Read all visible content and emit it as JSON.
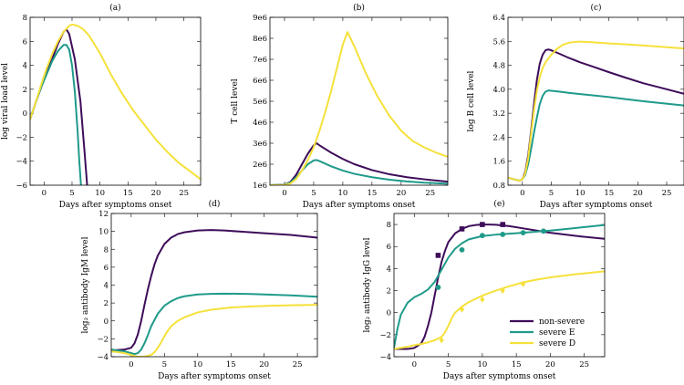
{
  "colors": {
    "non_severe": "#3e0c5a",
    "severe_E": "#1f9a8a",
    "severe_D": "#f5e13a"
  },
  "chart_data": [
    {
      "id": "a",
      "type": "line",
      "title": "(a)",
      "xlabel": "Days after symptoms onset",
      "ylabel": "log viral load level",
      "xlim": [
        -2.5,
        28
      ],
      "ylim": [
        -6,
        8
      ],
      "xticks": [
        0,
        5,
        10,
        15,
        20,
        25
      ],
      "yticks": [
        -6,
        -4,
        -2,
        0,
        2,
        4,
        6,
        8
      ],
      "series": [
        {
          "name": "non-severe",
          "color_key": "non_severe",
          "x": [
            -2.5,
            -1.5,
            -0.5,
            0.5,
            1.5,
            2.5,
            3.5,
            4,
            4.5,
            5.5,
            6.5,
            7.2,
            7.7
          ],
          "y": [
            -0.5,
            0.9,
            2.2,
            3.4,
            4.6,
            5.8,
            6.8,
            7,
            6.6,
            4.5,
            1,
            -3,
            -6
          ]
        },
        {
          "name": "severe E",
          "color_key": "severe_E",
          "x": [
            -2.5,
            -1.5,
            -0.5,
            0.5,
            1.5,
            2.5,
            3.5,
            4,
            4.5,
            5,
            5.5,
            6,
            6.3,
            6.6
          ],
          "y": [
            -0.5,
            0.9,
            2.2,
            3.3,
            4.4,
            5.2,
            5.7,
            5.7,
            5.3,
            4,
            1.8,
            -1.5,
            -4,
            -6
          ]
        },
        {
          "name": "severe D",
          "color_key": "severe_D",
          "x": [
            -2.5,
            -1.5,
            -0.5,
            0.5,
            1.5,
            2.5,
            3.5,
            4.5,
            5,
            6,
            7,
            8,
            10,
            12,
            14,
            16,
            18,
            20,
            22,
            24,
            26,
            28
          ],
          "y": [
            -0.5,
            0.9,
            2.4,
            3.8,
            5,
            6,
            6.8,
            7.3,
            7.4,
            7.3,
            7,
            6.5,
            5,
            3.2,
            1.6,
            0.2,
            -1,
            -2.2,
            -3.2,
            -4.1,
            -4.8,
            -5.5
          ]
        }
      ]
    },
    {
      "id": "b",
      "type": "line",
      "title": "(b)",
      "xlabel": "Days after symptoms onset",
      "ylabel": "T cell level",
      "xlim": [
        -2.5,
        28
      ],
      "ylim": [
        1000000,
        9000000
      ],
      "xticks": [
        0,
        5,
        10,
        15,
        20,
        25
      ],
      "yticks": [
        1000000,
        2000000,
        3000000,
        4000000,
        5000000,
        6000000,
        7000000,
        8000000,
        9000000
      ],
      "ytick_labels": [
        "1e6",
        "2e6",
        "3e6",
        "4e6",
        "5e6",
        "6e6",
        "7e6",
        "8e6",
        "9e6"
      ],
      "series": [
        {
          "name": "non-severe",
          "color_key": "non_severe",
          "x": [
            -2.5,
            0,
            1,
            2,
            3,
            4,
            5,
            5.5,
            6,
            8,
            10,
            12,
            15,
            18,
            21,
            24,
            28
          ],
          "y": [
            1000000,
            1020000,
            1150000,
            1500000,
            2000000,
            2500000,
            2900000,
            3000000,
            2900000,
            2550000,
            2250000,
            2000000,
            1720000,
            1520000,
            1380000,
            1280000,
            1170000
          ]
        },
        {
          "name": "severe E",
          "color_key": "severe_E",
          "x": [
            -2.5,
            0,
            1,
            2,
            3,
            4,
            5,
            5.5,
            6,
            8,
            10,
            12,
            15,
            18,
            21,
            24,
            28
          ],
          "y": [
            1000000,
            1020000,
            1120000,
            1380000,
            1700000,
            2000000,
            2180000,
            2200000,
            2150000,
            1900000,
            1700000,
            1540000,
            1380000,
            1260000,
            1180000,
            1120000,
            1070000
          ]
        },
        {
          "name": "severe D",
          "color_key": "severe_D",
          "x": [
            -2.5,
            0,
            1,
            2,
            3,
            4,
            5,
            6,
            7,
            8,
            9,
            10,
            10.8,
            12,
            14,
            16,
            18,
            20,
            22,
            24,
            26,
            28
          ],
          "y": [
            1000000,
            1010000,
            1080000,
            1300000,
            1700000,
            2200000,
            2800000,
            3600000,
            4500000,
            5500000,
            6600000,
            7700000,
            8300000,
            7600000,
            6300000,
            5200000,
            4300000,
            3600000,
            3100000,
            2800000,
            2550000,
            2350000
          ]
        }
      ]
    },
    {
      "id": "c",
      "type": "line",
      "title": "(c)",
      "xlabel": "Days after symptoms onset",
      "ylabel": "log B cell level",
      "xlim": [
        -2.5,
        28
      ],
      "ylim": [
        0.8,
        6.4
      ],
      "xticks": [
        0,
        5,
        10,
        15,
        20,
        25
      ],
      "yticks": [
        0.8,
        1.6,
        2.4,
        3.2,
        4.0,
        4.8,
        5.6,
        6.4
      ],
      "ytick_labels": [
        "0.8",
        "1.6",
        "2.4",
        "3.2",
        "4.0",
        "4.8",
        "5.6",
        "6.4"
      ],
      "series": [
        {
          "name": "non-severe",
          "color_key": "non_severe",
          "x": [
            -2.5,
            -1.5,
            -0.5,
            0,
            0.5,
            1,
            1.5,
            2,
            2.5,
            3,
            3.5,
            4,
            4.5,
            5,
            6,
            8,
            10,
            12,
            15,
            18,
            21,
            24,
            28
          ],
          "y": [
            1.05,
            1,
            0.95,
            1,
            1.25,
            1.8,
            2.6,
            3.5,
            4.3,
            4.85,
            5.15,
            5.3,
            5.33,
            5.3,
            5.22,
            5.05,
            4.9,
            4.77,
            4.57,
            4.38,
            4.2,
            4.05,
            3.85
          ]
        },
        {
          "name": "severe E",
          "color_key": "severe_E",
          "x": [
            -2.5,
            -1.5,
            -0.5,
            0,
            0.5,
            1,
            1.5,
            2,
            2.5,
            3,
            3.5,
            4,
            4.5,
            5,
            6,
            8,
            10,
            12,
            15,
            18,
            21,
            24,
            28
          ],
          "y": [
            1.05,
            1,
            0.95,
            1,
            1.15,
            1.5,
            2,
            2.55,
            3.05,
            3.5,
            3.78,
            3.92,
            3.96,
            3.95,
            3.93,
            3.88,
            3.84,
            3.8,
            3.74,
            3.67,
            3.6,
            3.54,
            3.46
          ]
        },
        {
          "name": "severe D",
          "color_key": "severe_D",
          "x": [
            -2.5,
            -1.5,
            -0.5,
            0,
            0.5,
            1,
            1.5,
            2,
            2.5,
            3,
            3.5,
            4,
            5,
            6,
            7,
            8,
            9,
            10,
            12,
            15,
            18,
            21,
            24,
            28
          ],
          "y": [
            1.05,
            1,
            0.95,
            1,
            1.2,
            1.7,
            2.5,
            3.3,
            3.95,
            4.4,
            4.7,
            4.9,
            5.15,
            5.35,
            5.48,
            5.55,
            5.58,
            5.59,
            5.57,
            5.53,
            5.5,
            5.46,
            5.42,
            5.36
          ]
        }
      ]
    },
    {
      "id": "d",
      "type": "line",
      "title": "(d)",
      "xlabel": "Days after symptoms onset",
      "ylabel": "log₂ antibody IgM level",
      "xlim": [
        -3,
        28
      ],
      "ylim": [
        -4,
        12
      ],
      "xticks": [
        0,
        5,
        10,
        15,
        20,
        25
      ],
      "yticks": [
        -4,
        -2,
        0,
        2,
        4,
        6,
        8,
        10,
        12
      ],
      "series": [
        {
          "name": "non-severe",
          "color_key": "non_severe",
          "x": [
            -3,
            -1,
            0,
            0.5,
            1,
            1.5,
            2,
            2.5,
            3,
            3.5,
            4,
            5,
            6,
            7,
            8,
            10,
            12,
            14,
            16,
            20,
            24,
            28
          ],
          "y": [
            -3.3,
            -3.2,
            -3,
            -2.5,
            -1.5,
            0,
            1.8,
            3.5,
            5,
            6.3,
            7.3,
            8.6,
            9.3,
            9.7,
            9.9,
            10.1,
            10.15,
            10.1,
            10,
            9.8,
            9.6,
            9.3
          ]
        },
        {
          "name": "severe E",
          "color_key": "severe_E",
          "x": [
            -3,
            -1,
            0,
            0.5,
            1,
            1.5,
            2,
            2.5,
            3,
            4,
            5,
            6,
            7,
            8,
            10,
            12,
            14,
            16,
            18,
            20,
            24,
            28
          ],
          "y": [
            -3.2,
            -3.4,
            -3.6,
            -3.7,
            -3.6,
            -3.2,
            -2.5,
            -1.6,
            -0.6,
            0.8,
            1.7,
            2.2,
            2.55,
            2.75,
            2.95,
            3.02,
            3.05,
            3.03,
            3,
            2.95,
            2.85,
            2.7
          ]
        },
        {
          "name": "severe D",
          "color_key": "severe_D",
          "x": [
            -3,
            -1,
            0,
            1,
            2,
            3,
            3.5,
            4,
            4.5,
            5,
            5.5,
            6,
            7,
            8,
            10,
            12,
            15,
            18,
            21,
            24,
            28
          ],
          "y": [
            -3.4,
            -3.6,
            -3.8,
            -4,
            -4,
            -3.8,
            -3.5,
            -3,
            -2.4,
            -1.7,
            -1.1,
            -0.6,
            0,
            0.4,
            0.95,
            1.25,
            1.5,
            1.62,
            1.7,
            1.75,
            1.8
          ]
        }
      ]
    },
    {
      "id": "e",
      "type": "line",
      "title": "(e)",
      "xlabel": "Days after symptoms onset",
      "ylabel": "log₂ antibody IgG level",
      "xlim": [
        -3,
        28
      ],
      "ylim": [
        -4,
        9
      ],
      "xticks": [
        0,
        5,
        10,
        15,
        20,
        25
      ],
      "yticks": [
        -4,
        -2,
        0,
        2,
        4,
        6,
        8
      ],
      "legend_position": "bottom-right",
      "series": [
        {
          "name": "non-severe",
          "color_key": "non_severe",
          "marker": "square",
          "x": [
            -3,
            -1,
            0,
            1,
            1.5,
            2,
            2.5,
            3,
            3.5,
            4,
            4.5,
            5,
            6,
            7,
            8,
            9,
            10,
            11,
            12,
            14,
            16,
            18,
            20,
            24,
            28
          ],
          "y": [
            -3.3,
            -3.3,
            -3.2,
            -2.8,
            -2.2,
            -1.2,
            0,
            1.6,
            3.2,
            4.6,
            5.6,
            6.4,
            7.2,
            7.6,
            7.85,
            7.95,
            8,
            8,
            7.98,
            7.85,
            7.65,
            7.45,
            7.25,
            6.95,
            6.7
          ],
          "obs_x": [
            3.5,
            7,
            10,
            13
          ],
          "obs_y": [
            5.2,
            7.6,
            8,
            8
          ]
        },
        {
          "name": "severe E",
          "color_key": "severe_E",
          "marker": "circle",
          "x": [
            -3,
            -2.5,
            -2,
            -1,
            0,
            1,
            2,
            3,
            4,
            5,
            6,
            7,
            8,
            10,
            12,
            14,
            16,
            18,
            20,
            24,
            28
          ],
          "y": [
            -3.2,
            -1.5,
            -0.2,
            0.9,
            1.4,
            1.7,
            2.1,
            2.8,
            3.9,
            5,
            5.8,
            6.3,
            6.65,
            6.95,
            7.08,
            7.17,
            7.25,
            7.35,
            7.45,
            7.7,
            7.95
          ],
          "obs_x": [
            3.5,
            7,
            10,
            13,
            16,
            19
          ],
          "obs_y": [
            2.3,
            5.7,
            7,
            7.1,
            7.25,
            7.4
          ]
        },
        {
          "name": "severe D",
          "color_key": "severe_D",
          "marker": "diamond",
          "x": [
            -3,
            -1,
            0,
            1,
            2,
            3,
            4,
            4.5,
            5,
            5.5,
            6,
            7,
            8,
            10,
            12,
            14,
            16,
            18,
            20,
            24,
            28
          ],
          "y": [
            -3.3,
            -3.1,
            -2.95,
            -2.85,
            -2.7,
            -2.5,
            -2.2,
            -1.8,
            -1.2,
            -0.5,
            0,
            0.55,
            0.95,
            1.55,
            2,
            2.4,
            2.75,
            3,
            3.2,
            3.5,
            3.75
          ],
          "obs_x": [
            4,
            7,
            10,
            13,
            16
          ],
          "obs_y": [
            -2.5,
            0.3,
            1.2,
            2,
            2.6
          ]
        }
      ]
    }
  ]
}
